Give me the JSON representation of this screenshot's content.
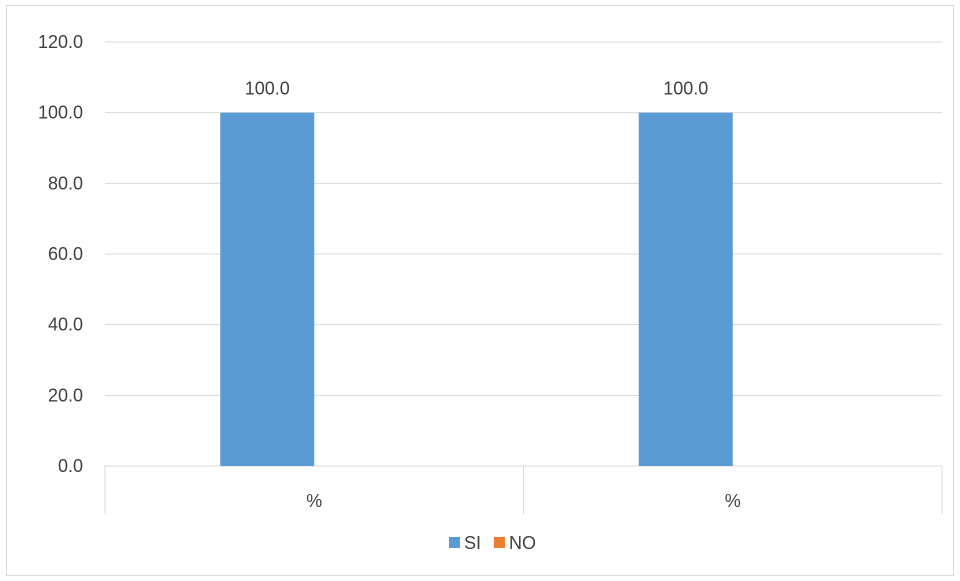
{
  "chart_data": {
    "type": "bar",
    "categories": [
      "%",
      "%"
    ],
    "series": [
      {
        "name": "SI",
        "values": [
          100.0,
          100.0
        ],
        "color": "#5b9bd5"
      },
      {
        "name": "NO",
        "values": [
          0,
          0
        ],
        "color": "#ed7d31"
      }
    ],
    "y_ticks": [
      "0.0",
      "20.0",
      "40.0",
      "60.0",
      "80.0",
      "100.0",
      "120.0"
    ],
    "data_labels": [
      "100.0",
      "100.0"
    ],
    "ylim": [
      0,
      120
    ],
    "grid": true,
    "legend_position": "bottom"
  }
}
